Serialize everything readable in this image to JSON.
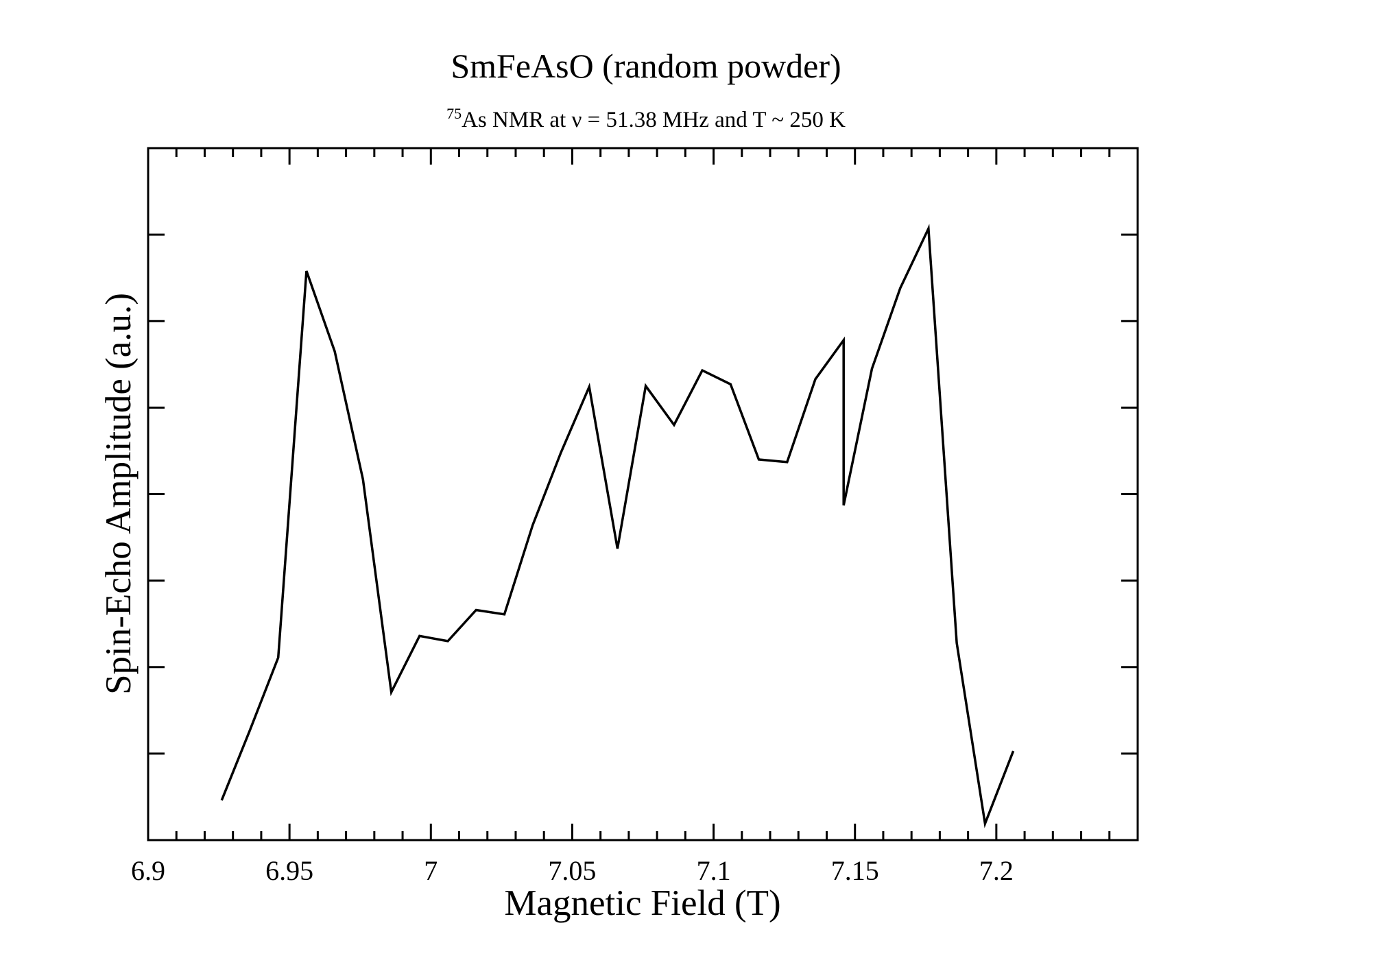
{
  "chart_data": {
    "type": "line",
    "title": "SmFeAsO (random powder)",
    "subtitle": {
      "isotope_mass": "75",
      "text": "As NMR at ν = 51.38 MHz and T ~ 250 K"
    },
    "xlabel": "Magnetic Field (T)",
    "ylabel": "Spin-Echo Amplitude (a.u.)",
    "xlim": [
      6.9,
      7.25
    ],
    "ylim": [
      0,
      8
    ],
    "x_ticks": [
      "6.9",
      "6.95",
      "7",
      "7.05",
      "7.1",
      "7.15",
      "7.2"
    ],
    "y_tick_labels": "none",
    "grid": false,
    "legend": "none",
    "line_color": "#000000",
    "series": [
      {
        "x": [
          6.926,
          6.936,
          6.946,
          6.956,
          6.966,
          6.976,
          6.986,
          6.996,
          7.006,
          7.016,
          7.026,
          7.036,
          7.046,
          7.056,
          7.066,
          7.076,
          7.086,
          7.096,
          7.106,
          7.116,
          7.126,
          7.136,
          7.146,
          7.146,
          7.156,
          7.166,
          7.176,
          7.186,
          7.196,
          7.206
        ],
        "y": [
          0.46,
          1.27,
          2.11,
          6.58,
          5.65,
          4.17,
          1.71,
          2.36,
          2.3,
          2.66,
          2.61,
          3.64,
          4.48,
          5.24,
          3.37,
          5.25,
          4.8,
          5.43,
          5.27,
          4.4,
          4.37,
          5.33,
          5.78,
          3.87,
          5.45,
          6.38,
          7.07,
          2.28,
          0.19,
          1.03
        ]
      }
    ]
  }
}
